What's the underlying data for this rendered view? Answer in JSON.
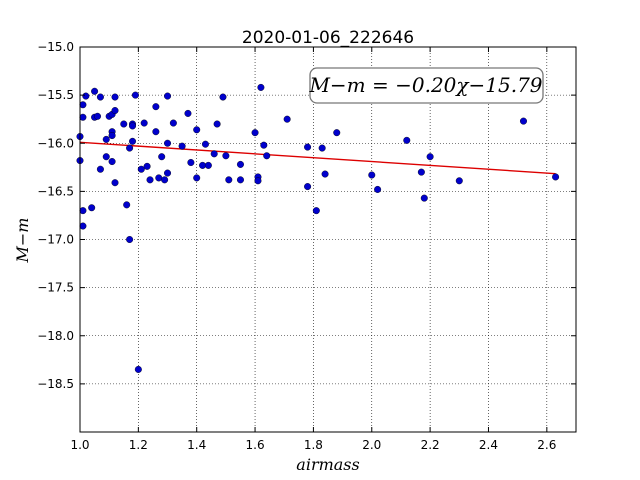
{
  "chart_data": {
    "type": "scatter",
    "title": "2020-01-06_222646",
    "xlabel": "airmass",
    "ylabel": "M−m",
    "xlim": [
      1.0,
      2.7
    ],
    "ylim": [
      -19.0,
      -15.0
    ],
    "y_inverted": true,
    "grid": true,
    "x_ticks": [
      1.0,
      1.2,
      1.4,
      1.6,
      1.8,
      2.0,
      2.2,
      2.4,
      2.6
    ],
    "x_tick_labels": [
      "1.0",
      "1.2",
      "1.4",
      "1.6",
      "1.8",
      "2.0",
      "2.2",
      "2.4",
      "2.6"
    ],
    "y_ticks": [
      -15.0,
      -15.5,
      -16.0,
      -16.5,
      -17.0,
      -17.5,
      -18.0,
      -18.5
    ],
    "y_tick_labels": [
      "−15.0",
      "−15.5",
      "−16.0",
      "−16.5",
      "−17.0",
      "−17.5",
      "−18.0",
      "−18.5"
    ],
    "annotation": {
      "text": "M−m = −0.20χ−15.79",
      "placement": "upper-right"
    },
    "fit_line": {
      "slope": -0.2,
      "intercept": -15.79,
      "x_range": [
        1.0,
        2.63
      ],
      "color": "#dd0000"
    },
    "series": [
      {
        "color": "#0000cc",
        "points": [
          [
            1.0,
            -15.93
          ],
          [
            1.0,
            -16.18
          ],
          [
            1.01,
            -15.6
          ],
          [
            1.01,
            -15.73
          ],
          [
            1.02,
            -15.51
          ],
          [
            1.01,
            -16.7
          ],
          [
            1.01,
            -16.86
          ],
          [
            1.04,
            -16.67
          ],
          [
            1.05,
            -15.46
          ],
          [
            1.05,
            -15.73
          ],
          [
            1.06,
            -15.72
          ],
          [
            1.07,
            -15.52
          ],
          [
            1.07,
            -16.27
          ],
          [
            1.09,
            -15.96
          ],
          [
            1.09,
            -16.14
          ],
          [
            1.1,
            -15.72
          ],
          [
            1.11,
            -15.88
          ],
          [
            1.11,
            -15.7
          ],
          [
            1.12,
            -15.52
          ],
          [
            1.12,
            -15.66
          ],
          [
            1.11,
            -15.92
          ],
          [
            1.11,
            -16.19
          ],
          [
            1.12,
            -16.41
          ],
          [
            1.15,
            -15.8
          ],
          [
            1.16,
            -16.64
          ],
          [
            1.17,
            -16.05
          ],
          [
            1.17,
            -17.0
          ],
          [
            1.18,
            -15.8
          ],
          [
            1.18,
            -15.82
          ],
          [
            1.18,
            -15.98
          ],
          [
            1.19,
            -15.5
          ],
          [
            1.21,
            -16.27
          ],
          [
            1.22,
            -15.79
          ],
          [
            1.23,
            -16.24
          ],
          [
            1.24,
            -16.38
          ],
          [
            1.26,
            -15.62
          ],
          [
            1.26,
            -15.88
          ],
          [
            1.27,
            -16.36
          ],
          [
            1.28,
            -16.14
          ],
          [
            1.29,
            -16.38
          ],
          [
            1.3,
            -15.51
          ],
          [
            1.3,
            -16.0
          ],
          [
            1.3,
            -16.31
          ],
          [
            1.32,
            -15.79
          ],
          [
            1.35,
            -16.03
          ],
          [
            1.37,
            -15.69
          ],
          [
            1.38,
            -16.2
          ],
          [
            1.4,
            -16.36
          ],
          [
            1.4,
            -15.86
          ],
          [
            1.42,
            -16.23
          ],
          [
            1.43,
            -16.01
          ],
          [
            1.44,
            -16.23
          ],
          [
            1.46,
            -16.11
          ],
          [
            1.47,
            -15.8
          ],
          [
            1.49,
            -15.52
          ],
          [
            1.5,
            -16.13
          ],
          [
            1.51,
            -16.38
          ],
          [
            1.55,
            -16.22
          ],
          [
            1.55,
            -16.38
          ],
          [
            1.6,
            -15.89
          ],
          [
            1.61,
            -16.35
          ],
          [
            1.61,
            -16.39
          ],
          [
            1.62,
            -15.42
          ],
          [
            1.63,
            -16.02
          ],
          [
            1.64,
            -16.13
          ],
          [
            1.71,
            -15.75
          ],
          [
            1.78,
            -16.45
          ],
          [
            1.78,
            -16.04
          ],
          [
            1.81,
            -16.7
          ],
          [
            1.83,
            -16.05
          ],
          [
            1.84,
            -16.32
          ],
          [
            1.88,
            -15.89
          ],
          [
            2.0,
            -16.33
          ],
          [
            2.02,
            -16.48
          ],
          [
            2.12,
            -15.97
          ],
          [
            2.17,
            -16.3
          ],
          [
            2.18,
            -16.57
          ],
          [
            2.2,
            -16.14
          ],
          [
            2.3,
            -16.39
          ],
          [
            2.52,
            -15.77
          ],
          [
            2.63,
            -16.35
          ],
          [
            1.2,
            -18.35
          ]
        ]
      }
    ]
  }
}
